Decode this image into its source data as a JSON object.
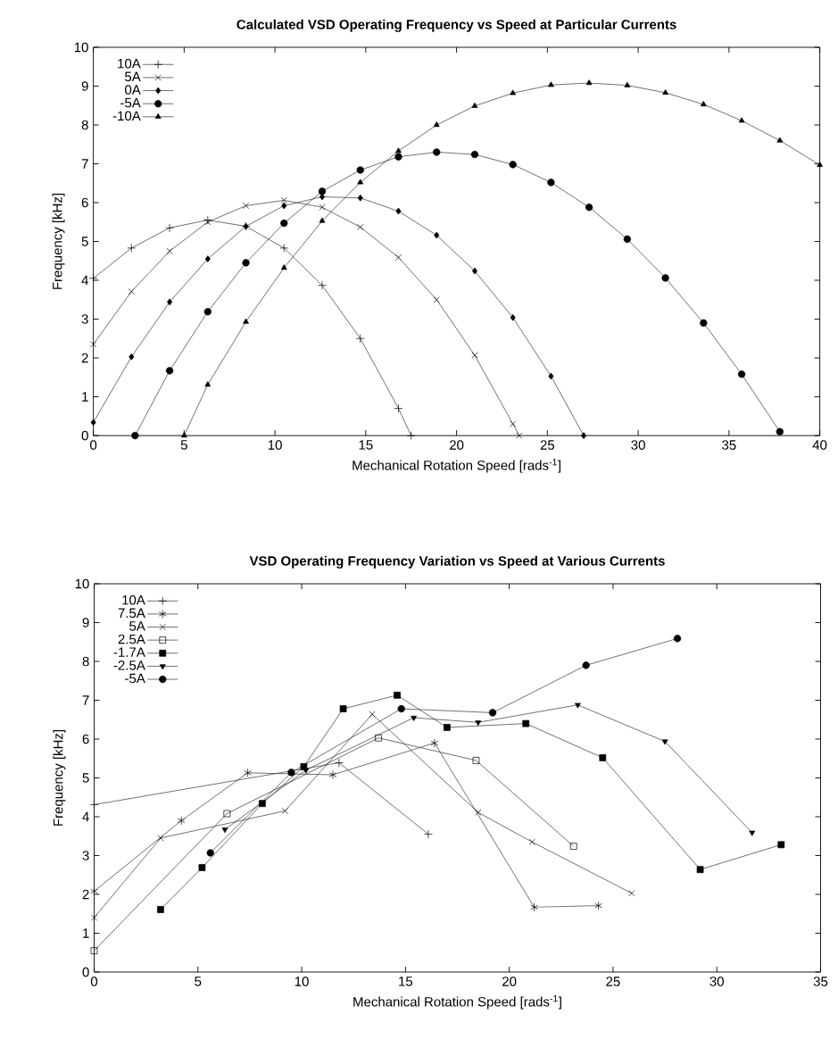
{
  "chart_data": [
    {
      "type": "line",
      "title": "Calculated VSD Operating Frequency vs Speed at Particular Currents",
      "xlabel": "Mechanical Rotation Speed [rads$^{-1}$]",
      "ylabel": "Frequency [kHz]",
      "xlim": [
        0,
        40
      ],
      "ylim": [
        0,
        10
      ],
      "xticks": [
        0,
        5,
        10,
        15,
        20,
        25,
        30,
        35,
        40
      ],
      "yticks": [
        0,
        1,
        2,
        3,
        4,
        5,
        6,
        7,
        8,
        9,
        10
      ],
      "grid": false,
      "legend": "top left",
      "series": [
        {
          "name": "10A",
          "color": "#333333",
          "marker": "plus",
          "x": [
            0,
            2.1,
            4.2,
            6.3,
            8.4,
            10.5,
            12.6,
            14.7,
            16.8,
            17.5
          ],
          "values": [
            4.05,
            4.83,
            5.35,
            5.55,
            5.39,
            4.83,
            3.87,
            2.5,
            0.7,
            0
          ]
        },
        {
          "name": "5A",
          "color": "#333333",
          "marker": "x",
          "x": [
            0,
            2.1,
            4.2,
            6.3,
            8.4,
            10.5,
            12.6,
            14.7,
            16.8,
            18.9,
            21.0,
            23.1,
            23.45
          ],
          "values": [
            2.35,
            3.71,
            4.75,
            5.5,
            5.92,
            6.06,
            5.88,
            5.37,
            4.59,
            3.5,
            2.07,
            0.3,
            0
          ]
        },
        {
          "name": "0A",
          "color": "#333333",
          "marker": "diamond",
          "x": [
            0,
            2.1,
            4.2,
            6.3,
            8.4,
            10.5,
            12.6,
            14.7,
            16.8,
            18.9,
            21.0,
            23.1,
            25.2,
            27.0
          ],
          "values": [
            0.34,
            2.03,
            3.44,
            4.55,
            5.39,
            5.92,
            6.15,
            6.12,
            5.78,
            5.16,
            4.24,
            3.04,
            1.53,
            0
          ]
        },
        {
          "name": "-5A",
          "color": "#333333",
          "marker": "circle",
          "x": [
            2.3,
            4.2,
            6.3,
            8.4,
            10.5,
            12.6,
            14.7,
            16.8,
            18.9,
            21.0,
            23.1,
            25.2,
            27.3,
            29.4,
            31.5,
            33.6,
            35.7,
            37.8
          ],
          "values": [
            0,
            1.67,
            3.19,
            4.45,
            5.47,
            6.29,
            6.84,
            7.18,
            7.3,
            7.24,
            6.98,
            6.52,
            5.88,
            5.06,
            4.06,
            2.9,
            1.58,
            0.1
          ]
        },
        {
          "name": "-10A",
          "color": "#333333",
          "marker": "triangle",
          "x": [
            5.0,
            6.3,
            8.4,
            10.5,
            12.6,
            14.7,
            16.8,
            18.9,
            21.0,
            23.1,
            25.2,
            27.3,
            29.4,
            31.5,
            33.6,
            35.7,
            37.8,
            40.0
          ],
          "values": [
            0,
            1.31,
            2.93,
            4.32,
            5.53,
            6.52,
            7.33,
            8.0,
            8.49,
            8.82,
            9.03,
            9.08,
            9.02,
            8.83,
            8.53,
            8.11,
            7.6,
            6.97
          ]
        }
      ]
    },
    {
      "type": "line",
      "title": "VSD Operating Frequency Variation vs Speed at Various Currents",
      "xlabel": "Mechanical Rotation Speed [rads$^{-1}$]",
      "ylabel": "Frequency [kHz]",
      "xlim": [
        0,
        35
      ],
      "ylim": [
        0,
        10
      ],
      "xticks": [
        0,
        5,
        10,
        15,
        20,
        25,
        30,
        35
      ],
      "yticks": [
        0,
        1,
        2,
        3,
        4,
        5,
        6,
        7,
        8,
        9,
        10
      ],
      "grid": false,
      "legend": "top left",
      "series": [
        {
          "name": "10A",
          "color": "#333333",
          "marker": "plus",
          "x": [
            0,
            11.8,
            16.1
          ],
          "values": [
            4.31,
            5.39,
            3.55
          ]
        },
        {
          "name": "7.5A",
          "color": "#333333",
          "marker": "cross",
          "x": [
            0,
            4.2,
            7.4,
            11.5,
            16.4,
            21.2,
            24.3
          ],
          "values": [
            2.08,
            3.9,
            5.13,
            5.08,
            5.9,
            1.67,
            1.71
          ]
        },
        {
          "name": "5A",
          "color": "#333333",
          "marker": "x",
          "x": [
            0,
            3.2,
            9.2,
            13.4,
            18.5,
            21.1,
            25.9
          ],
          "values": [
            1.4,
            3.45,
            4.15,
            6.64,
            4.11,
            3.35,
            2.03
          ]
        },
        {
          "name": "2.5A",
          "color": "#333333",
          "marker": "square_open",
          "x": [
            0,
            6.4,
            13.7,
            18.4,
            23.1
          ],
          "values": [
            0.55,
            4.08,
            6.03,
            5.45,
            3.24
          ]
        },
        {
          "name": "-1.7A",
          "color": "#333333",
          "marker": "square",
          "x": [
            3.2,
            5.2,
            8.1,
            10.1,
            12.0,
            14.6,
            17.0,
            20.8,
            24.5,
            29.2,
            33.1
          ],
          "values": [
            1.61,
            2.69,
            4.34,
            5.29,
            6.78,
            7.13,
            6.3,
            6.4,
            5.52,
            2.64,
            3.28
          ]
        },
        {
          "name": "-2.5A",
          "color": "#333333",
          "marker": "triangle_down",
          "x": [
            6.3,
            10.2,
            15.4,
            18.5,
            23.3,
            27.5,
            31.7
          ],
          "values": [
            3.67,
            5.2,
            6.55,
            6.43,
            6.88,
            5.94,
            3.59
          ]
        },
        {
          "name": "-5A",
          "color": "#333333",
          "marker": "circle",
          "x": [
            5.6,
            9.5,
            14.8,
            19.2,
            23.7,
            28.1
          ],
          "values": [
            3.07,
            5.14,
            6.78,
            6.68,
            7.9,
            8.59
          ]
        }
      ]
    }
  ]
}
